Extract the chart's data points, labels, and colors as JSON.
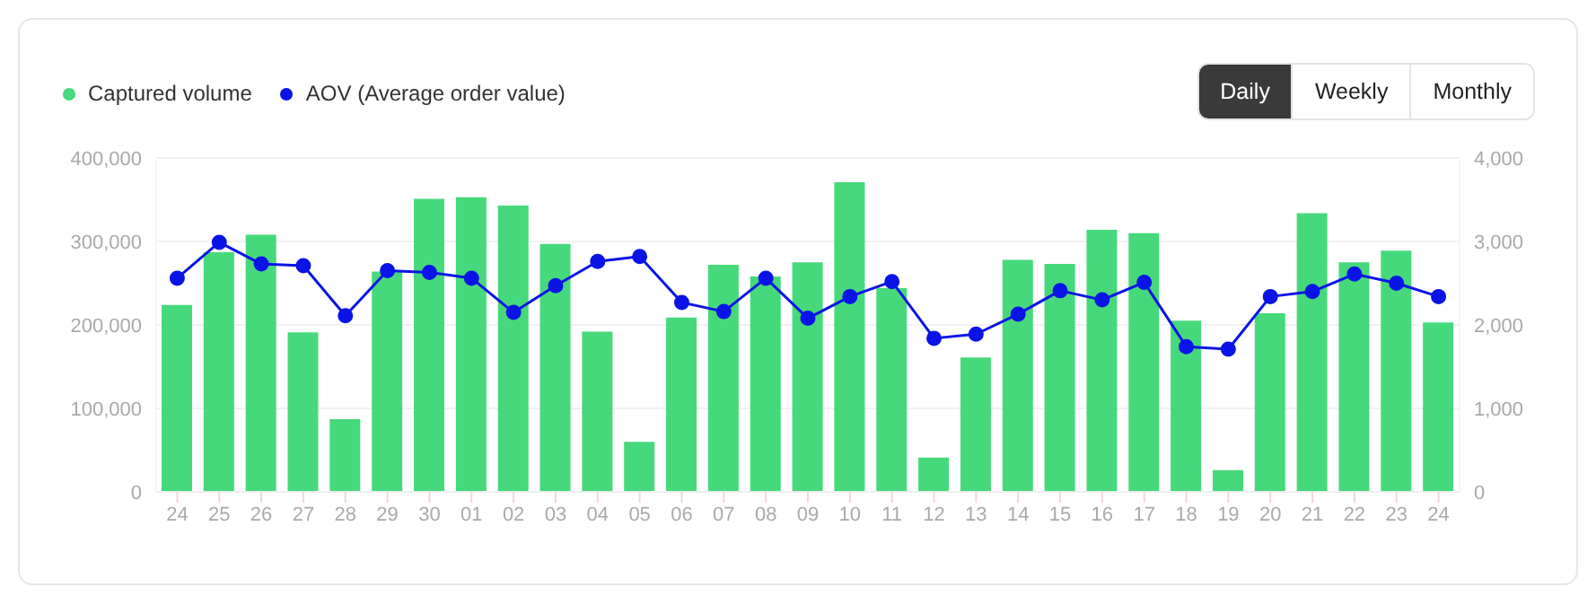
{
  "chart_data": {
    "type": "bar",
    "categories": [
      "24",
      "25",
      "26",
      "27",
      "28",
      "29",
      "30",
      "01",
      "02",
      "03",
      "04",
      "05",
      "06",
      "07",
      "08",
      "09",
      "10",
      "11",
      "12",
      "13",
      "14",
      "15",
      "16",
      "17",
      "18",
      "19",
      "20",
      "21",
      "22",
      "23",
      "24"
    ],
    "series": [
      {
        "name": "Captured volume",
        "color": "#46d97b",
        "values": [
          224000,
          287000,
          308000,
          191000,
          87000,
          264000,
          351000,
          353000,
          343000,
          297000,
          192000,
          60000,
          209000,
          272000,
          258000,
          275000,
          371000,
          244000,
          41000,
          161000,
          278000,
          273000,
          314000,
          310000,
          205000,
          26000,
          214000,
          334000,
          275000,
          289000,
          203000
        ]
      },
      {
        "name": "AOV (Average order value)",
        "type": "line",
        "axis": "y2",
        "color": "#0a14e6",
        "values": [
          2560,
          2990,
          2730,
          2710,
          2110,
          2650,
          2630,
          2560,
          2150,
          2470,
          2760,
          2820,
          2270,
          2160,
          2560,
          2080,
          2340,
          2520,
          1840,
          1890,
          2130,
          2410,
          2300,
          2510,
          1740,
          1710,
          2340,
          2400,
          2610,
          2500,
          2340
        ]
      }
    ],
    "ylim": [
      0,
      400000
    ],
    "yticks": [
      {
        "value": 0,
        "label": "0"
      },
      {
        "value": 100000,
        "label": "100,000"
      },
      {
        "value": 200000,
        "label": "200,000"
      },
      {
        "value": 300000,
        "label": "300,000"
      },
      {
        "value": 400000,
        "label": "400,000"
      }
    ],
    "y2lim": [
      0,
      4000
    ],
    "y2ticks": [
      {
        "value": 0,
        "label": "0"
      },
      {
        "value": 1000,
        "label": "1,000"
      },
      {
        "value": 2000,
        "label": "2,000"
      },
      {
        "value": 3000,
        "label": "3,000"
      },
      {
        "value": 4000,
        "label": "4,000"
      }
    ],
    "grid": "y",
    "legend": "top left",
    "marker": "circle",
    "line_style": "solid",
    "annotations": [
      "Daily",
      "Weekly",
      "Monthly"
    ]
  }
}
